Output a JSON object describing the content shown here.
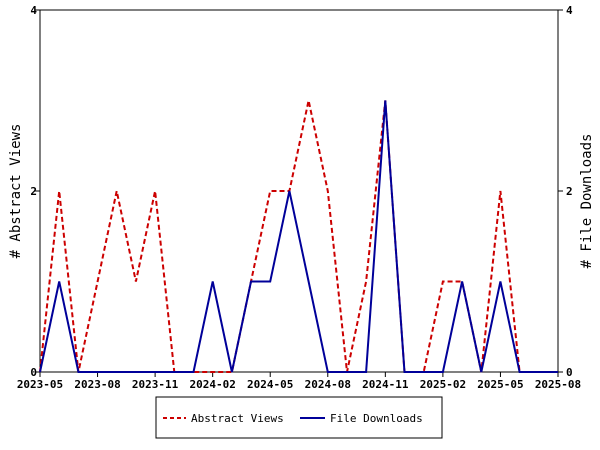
{
  "chart_data": {
    "type": "line",
    "x_dates": [
      "2023-05",
      "2023-06",
      "2023-07",
      "2023-08",
      "2023-09",
      "2023-10",
      "2023-11",
      "2023-12",
      "2024-01",
      "2024-02",
      "2024-03",
      "2024-04",
      "2024-05",
      "2024-06",
      "2024-07",
      "2024-08",
      "2024-09",
      "2024-10",
      "2024-11",
      "2024-12",
      "2025-01",
      "2025-02",
      "2025-03",
      "2025-04",
      "2025-05",
      "2025-06",
      "2025-07",
      "2025-08"
    ],
    "x_tick_labels": [
      "2023-05",
      "2023-08",
      "2023-11",
      "2024-02",
      "2024-05",
      "2024-08",
      "2024-11",
      "2025-02",
      "2025-05",
      "2025-08"
    ],
    "y_left_label": "# Abstract Views",
    "y_right_label": "# File Downloads",
    "y_left_ticks": [
      "0",
      "2",
      "4"
    ],
    "y_right_ticks": [
      "0",
      "2",
      "4"
    ],
    "ylim": [
      0,
      4
    ],
    "legend_position": "bottom-center",
    "series": [
      {
        "name": "Abstract Views",
        "color": "#cc0000",
        "style": "dashed",
        "axis": "left",
        "values": [
          0,
          2,
          0,
          1,
          2,
          1,
          2,
          0,
          0,
          0,
          0,
          1,
          2,
          2,
          3,
          2,
          0,
          1,
          3,
          0,
          0,
          1,
          1,
          0,
          2,
          0,
          0,
          0
        ]
      },
      {
        "name": "File Downloads",
        "color": "#000099",
        "style": "solid",
        "axis": "right",
        "values": [
          0,
          1,
          0,
          0,
          0,
          0,
          0,
          0,
          0,
          1,
          0,
          1,
          1,
          2,
          1,
          0,
          0,
          0,
          3,
          0,
          0,
          0,
          1,
          0,
          1,
          0,
          0,
          0
        ]
      }
    ]
  }
}
